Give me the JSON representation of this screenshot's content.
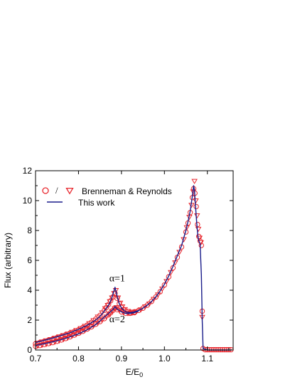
{
  "chart_data": {
    "type": "line",
    "xlabel": "E/E",
    "xlabel_sub": "0",
    "ylabel": "Flux (arbitrary)",
    "xlim": [
      0.7,
      1.16
    ],
    "ylim": [
      0,
      12
    ],
    "xticks": [
      0.7,
      0.8,
      0.9,
      1.0,
      1.1
    ],
    "xtick_labels": [
      "0.7",
      "0.8",
      "0.9",
      "1.0",
      "1.1"
    ],
    "yticks": [
      0,
      2,
      4,
      6,
      8,
      10,
      12
    ],
    "ytick_labels": [
      "0",
      "2",
      "4",
      "6",
      "8",
      "10",
      "12"
    ],
    "legend": {
      "placement": "top-left",
      "entries": [
        {
          "label": "Brenneman & Reynolds",
          "separator": "/",
          "markers": [
            "circle",
            "triangle-down"
          ],
          "color": "#e8262d"
        },
        {
          "label": "This work",
          "marker": "line",
          "color": "#1a1d8a"
        }
      ]
    },
    "annotations": [
      {
        "text": "α=1",
        "x": 0.89,
        "y": 4.6
      },
      {
        "text": "α=2",
        "x": 0.89,
        "y": 1.85
      }
    ],
    "series": [
      {
        "name": "This work",
        "style": "line",
        "color": "#1a1d8a",
        "curves": [
          {
            "x": [
              0.7,
              0.72,
              0.74,
              0.76,
              0.78,
              0.8,
              0.82,
              0.84,
              0.85,
              0.86,
              0.87,
              0.875,
              0.88,
              0.885,
              0.89,
              0.895,
              0.9,
              0.91,
              0.92,
              0.93,
              0.94,
              0.95,
              0.96,
              0.97,
              0.98,
              0.99,
              1.0,
              1.01,
              1.02,
              1.03,
              1.04,
              1.05,
              1.055,
              1.06,
              1.065,
              1.068,
              1.07,
              1.072,
              1.075,
              1.078,
              1.08,
              1.083,
              1.086,
              1.088,
              1.09,
              1.1,
              1.155
            ],
            "y": [
              0.5,
              0.65,
              0.8,
              0.97,
              1.15,
              1.38,
              1.65,
              2.0,
              2.25,
              2.6,
              3.0,
              3.3,
              3.7,
              4.2,
              3.6,
              3.1,
              2.8,
              2.55,
              2.5,
              2.55,
              2.65,
              2.8,
              3.0,
              3.25,
              3.55,
              3.95,
              4.4,
              4.95,
              5.6,
              6.3,
              7.0,
              8.0,
              8.6,
              9.3,
              10.3,
              11.0,
              10.7,
              9.8,
              8.6,
              7.6,
              7.3,
              7.1,
              5.0,
              2.0,
              0.1,
              0.0,
              0.0
            ]
          },
          {
            "x": [
              0.7,
              0.72,
              0.74,
              0.76,
              0.78,
              0.8,
              0.82,
              0.84,
              0.85,
              0.86,
              0.87,
              0.88,
              0.885,
              0.89,
              0.9,
              0.91,
              0.92,
              0.93,
              0.94
            ],
            "y": [
              0.3,
              0.42,
              0.55,
              0.7,
              0.88,
              1.08,
              1.35,
              1.7,
              1.95,
              2.2,
              2.45,
              2.7,
              2.9,
              2.75,
              2.55,
              2.45,
              2.45,
              2.5,
              2.6
            ]
          }
        ]
      },
      {
        "name": "Brenneman & Reynolds",
        "style": "markers",
        "color": "#e8262d",
        "curves": [
          {
            "marker": "circle",
            "x": [
              0.7,
              0.71,
              0.72,
              0.73,
              0.74,
              0.75,
              0.76,
              0.77,
              0.78,
              0.79,
              0.8,
              0.81,
              0.82,
              0.83,
              0.84,
              0.85,
              0.86,
              0.865,
              0.87,
              0.875,
              0.88,
              0.885,
              0.89,
              0.895,
              0.9,
              0.905,
              0.91,
              0.92,
              0.93,
              0.94,
              0.95,
              0.96,
              0.97,
              0.98,
              0.99,
              1.0,
              1.01,
              1.02,
              1.03,
              1.04,
              1.05,
              1.055,
              1.06,
              1.065,
              1.068,
              1.071,
              1.074,
              1.077,
              1.08,
              1.083,
              1.086,
              1.088,
              1.09,
              1.095,
              1.1,
              1.105,
              1.11,
              1.115,
              1.12,
              1.125,
              1.13,
              1.135,
              1.14,
              1.145,
              1.15,
              1.155
            ],
            "y": [
              0.42,
              0.5,
              0.58,
              0.66,
              0.74,
              0.83,
              0.92,
              1.02,
              1.12,
              1.23,
              1.35,
              1.5,
              1.66,
              1.85,
              2.07,
              2.32,
              2.65,
              2.85,
              3.05,
              3.3,
              3.55,
              3.8,
              3.45,
              3.1,
              2.85,
              2.7,
              2.6,
              2.5,
              2.55,
              2.65,
              2.8,
              3.0,
              3.25,
              3.55,
              3.9,
              4.35,
              4.9,
              5.5,
              6.2,
              6.9,
              7.9,
              8.5,
              9.2,
              10.2,
              10.8,
              10.5,
              9.6,
              8.4,
              7.6,
              7.3,
              7.0,
              2.6,
              0.1,
              0.02,
              0.02,
              0.02,
              0.02,
              0.02,
              0.02,
              0.02,
              0.02,
              0.02,
              0.02,
              0.02,
              0.02,
              0.02
            ]
          },
          {
            "marker": "circle",
            "x": [
              0.7,
              0.71,
              0.72,
              0.73,
              0.74,
              0.75,
              0.76,
              0.77,
              0.78,
              0.79,
              0.8,
              0.81,
              0.82,
              0.83,
              0.84,
              0.85,
              0.86,
              0.87,
              0.875,
              0.88,
              0.885,
              0.89,
              0.9,
              0.91,
              0.92,
              0.93
            ],
            "y": [
              0.25,
              0.3,
              0.36,
              0.43,
              0.5,
              0.58,
              0.67,
              0.77,
              0.88,
              1.0,
              1.12,
              1.25,
              1.4,
              1.55,
              1.72,
              1.9,
              2.1,
              2.35,
              2.5,
              2.65,
              2.8,
              2.7,
              2.55,
              2.45,
              2.45,
              2.5
            ]
          },
          {
            "marker": "triangle-down",
            "x": [
              0.705,
              0.715,
              0.725,
              0.735,
              0.745,
              0.755,
              0.765,
              0.775,
              0.785,
              0.795,
              0.805,
              0.815,
              0.825,
              0.835,
              0.845,
              0.855,
              0.862,
              0.868,
              0.873,
              0.878,
              0.883,
              0.887,
              0.892,
              0.897,
              0.902,
              0.908,
              0.915,
              0.925,
              0.935,
              0.945,
              0.955,
              0.965,
              0.975,
              0.985,
              0.995,
              1.005,
              1.015,
              1.025,
              1.035,
              1.045,
              1.052,
              1.058,
              1.063,
              1.067,
              1.07,
              1.073,
              1.076,
              1.079,
              1.082,
              1.085,
              1.088
            ],
            "y": [
              0.47,
              0.55,
              0.63,
              0.71,
              0.8,
              0.89,
              0.98,
              1.08,
              1.2,
              1.32,
              1.45,
              1.6,
              1.78,
              1.98,
              2.22,
              2.5,
              2.78,
              3.0,
              3.25,
              3.5,
              3.8,
              4.0,
              3.5,
              3.15,
              2.9,
              2.72,
              2.6,
              2.55,
              2.58,
              2.7,
              2.9,
              3.1,
              3.4,
              3.7,
              4.1,
              4.6,
              5.2,
              5.85,
              6.55,
              7.4,
              8.2,
              8.9,
              9.7,
              10.6,
              11.3,
              10.0,
              9.0,
              8.1,
              7.5,
              7.2,
              2.2
            ]
          },
          {
            "marker": "triangle-down",
            "x": [
              0.705,
              0.715,
              0.725,
              0.735,
              0.745,
              0.755,
              0.765,
              0.775,
              0.785,
              0.795,
              0.805,
              0.815,
              0.825,
              0.835,
              0.845,
              0.855,
              0.865,
              0.872,
              0.878,
              0.884,
              0.888,
              0.895,
              0.905,
              0.915,
              0.925
            ],
            "y": [
              0.28,
              0.33,
              0.4,
              0.47,
              0.54,
              0.62,
              0.72,
              0.82,
              0.94,
              1.06,
              1.18,
              1.32,
              1.47,
              1.63,
              1.8,
              2.0,
              2.22,
              2.42,
              2.6,
              2.78,
              2.85,
              2.65,
              2.5,
              2.45,
              2.48
            ]
          }
        ]
      }
    ]
  }
}
